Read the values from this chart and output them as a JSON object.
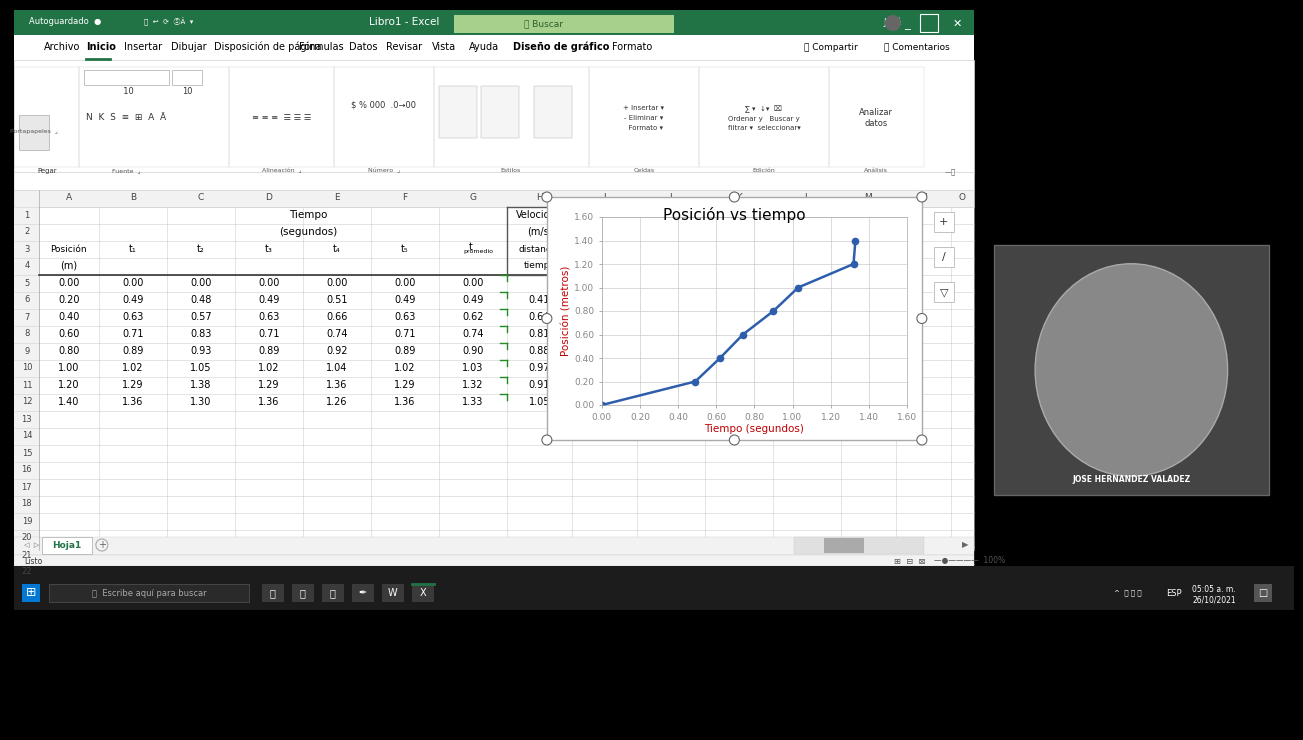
{
  "title": "Posición vs tiempo",
  "xlabel": "Tiempo (segundos)",
  "ylabel": "Posición (metros)",
  "xlabel_color": "#C00000",
  "ylabel_color": "#C00000",
  "x_data": [
    0.0,
    0.49,
    0.62,
    0.74,
    0.9,
    1.03,
    1.32,
    1.33
  ],
  "y_data": [
    0.0,
    0.2,
    0.4,
    0.6,
    0.8,
    1.0,
    1.2,
    1.4
  ],
  "xlim": [
    0.0,
    1.6
  ],
  "ylim": [
    0.0,
    1.6
  ],
  "xticks": [
    0.0,
    0.2,
    0.4,
    0.6,
    0.8,
    1.0,
    1.2,
    1.4,
    1.6
  ],
  "yticks": [
    0.0,
    0.2,
    0.4,
    0.6,
    0.8,
    1.0,
    1.2,
    1.4,
    1.6
  ],
  "line_color": "#2E5EAB",
  "marker_color": "#2E5EAB",
  "positions": [
    0.0,
    0.2,
    0.4,
    0.6,
    0.8,
    1.0,
    1.2,
    1.4
  ],
  "t1": [
    0.0,
    0.49,
    0.63,
    0.71,
    0.89,
    1.02,
    1.29,
    1.36
  ],
  "t2": [
    0.0,
    0.48,
    0.57,
    0.83,
    0.93,
    1.05,
    1.38,
    1.3
  ],
  "t3": [
    0.0,
    0.49,
    0.63,
    0.71,
    0.89,
    1.02,
    1.29,
    1.36
  ],
  "t4": [
    0.0,
    0.51,
    0.66,
    0.74,
    0.92,
    1.04,
    1.36,
    1.26
  ],
  "t5": [
    0.0,
    0.49,
    0.63,
    0.71,
    0.89,
    1.02,
    1.29,
    1.36
  ],
  "t_prom": [
    0.0,
    0.49,
    0.62,
    0.74,
    0.9,
    1.03,
    1.32,
    1.33
  ],
  "velocidad": [
    null,
    0.41,
    0.64,
    0.81,
    0.88,
    0.97,
    0.91,
    1.05
  ],
  "green_dark": "#1E5C2E",
  "green_excel": "#217346",
  "green_light": "#2E7D32",
  "white": "#FFFFFF",
  "light_gray": "#F2F2F2",
  "mid_gray": "#D0D0D0",
  "dark_gray": "#555555",
  "cell_line": "#E0E0E0",
  "win_bg": "#000000",
  "taskbar_bg": "#1C1C1C",
  "video_bg": "#333333",
  "ribbon_bg": "#FFFFFF",
  "search_bg": "#A8D08D",
  "name_color": "#FFFFFF"
}
